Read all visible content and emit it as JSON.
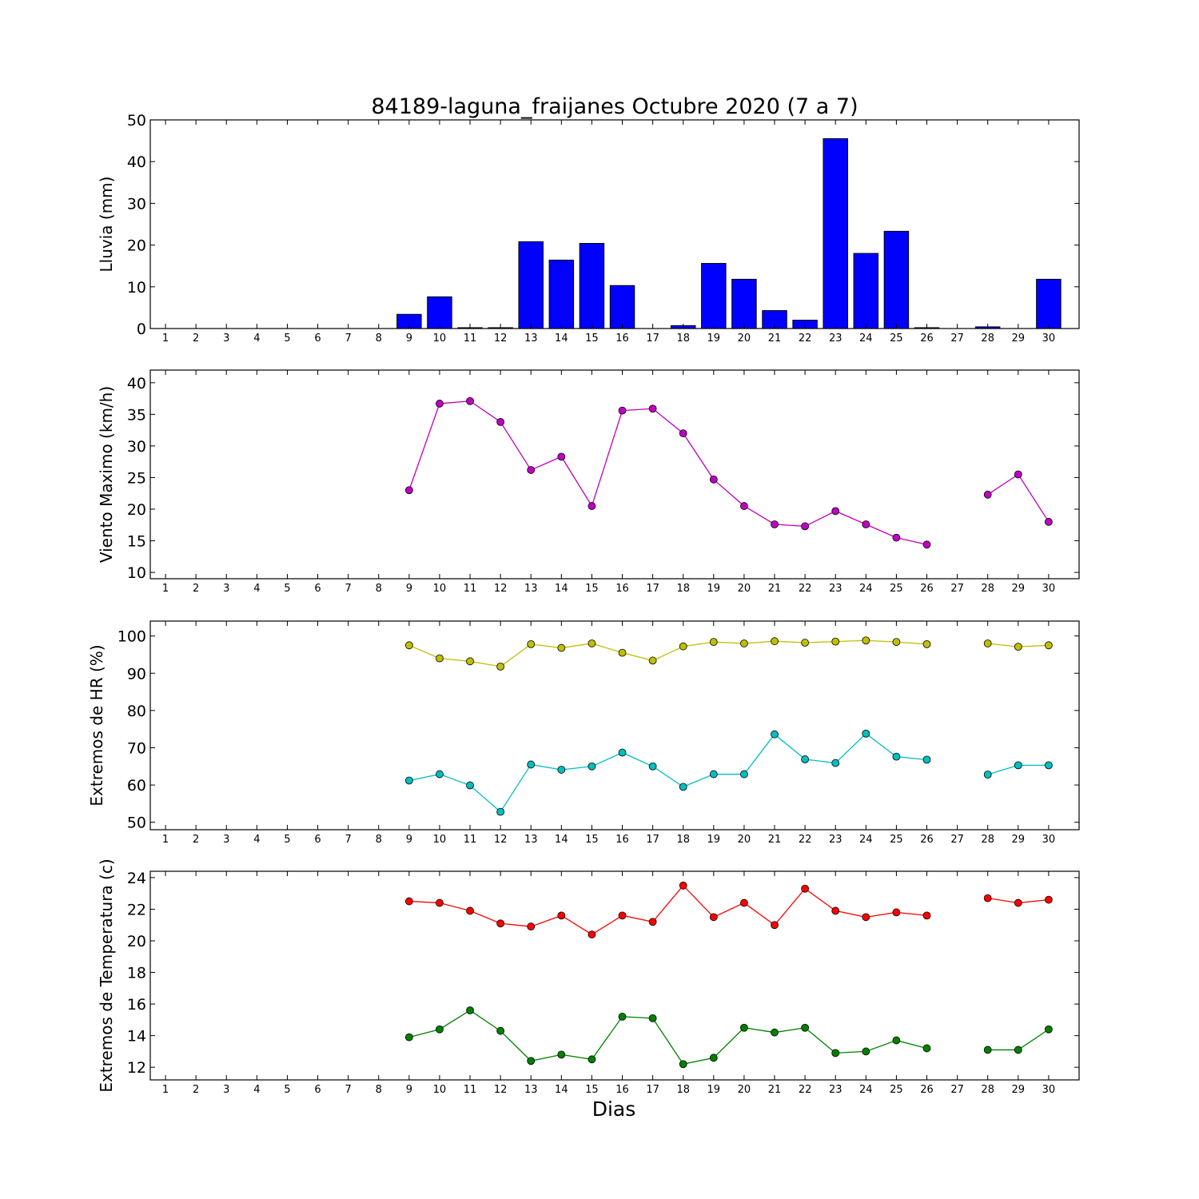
{
  "title": "84189-laguna_fraijanes Octubre 2020  (7 a 7)",
  "xlabel": "Dias",
  "x_tick_labels": [
    "1",
    "2",
    "3",
    "4",
    "5",
    "6",
    "7",
    "8",
    "9",
    "10",
    "11",
    "12",
    "13",
    "14",
    "15",
    "16",
    "17",
    "18",
    "19",
    "20",
    "21",
    "22",
    "23",
    "24",
    "25",
    "26",
    "27",
    "28",
    "29",
    "30"
  ],
  "chart_data": [
    {
      "type": "bar",
      "ylabel": "Lluvia (mm)",
      "ylim": [
        0,
        50
      ],
      "yticks": [
        0,
        10,
        20,
        30,
        40,
        50
      ],
      "categories": [
        "1",
        "2",
        "3",
        "4",
        "5",
        "6",
        "7",
        "8",
        "9",
        "10",
        "11",
        "12",
        "13",
        "14",
        "15",
        "16",
        "17",
        "18",
        "19",
        "20",
        "21",
        "22",
        "23",
        "24",
        "25",
        "26",
        "27",
        "28",
        "29",
        "30"
      ],
      "series": [
        {
          "color": "#0000ff",
          "values": [
            0,
            0,
            0,
            0,
            0,
            0,
            0,
            0,
            3.4,
            7.6,
            0.2,
            0.2,
            20.8,
            16.4,
            20.4,
            10.3,
            0,
            0.7,
            15.6,
            11.8,
            4.3,
            2.0,
            45.5,
            18.0,
            23.3,
            0.2,
            0,
            0.4,
            0,
            11.8
          ]
        }
      ]
    },
    {
      "type": "line",
      "ylabel": "Viento Maximo (km/h)",
      "ylim": [
        9,
        42
      ],
      "yticks": [
        10,
        15,
        20,
        25,
        30,
        35,
        40
      ],
      "categories": [
        "1",
        "2",
        "3",
        "4",
        "5",
        "6",
        "7",
        "8",
        "9",
        "10",
        "11",
        "12",
        "13",
        "14",
        "15",
        "16",
        "17",
        "18",
        "19",
        "20",
        "21",
        "22",
        "23",
        "24",
        "25",
        "26",
        "27",
        "28",
        "29",
        "30"
      ],
      "series": [
        {
          "color": "#bf00bf",
          "values": [
            null,
            null,
            null,
            null,
            null,
            null,
            null,
            null,
            23.0,
            36.7,
            37.1,
            33.8,
            26.2,
            28.3,
            20.5,
            35.6,
            35.9,
            32.0,
            24.7,
            20.5,
            17.6,
            17.3,
            19.7,
            17.6,
            15.5,
            14.4,
            null,
            22.3,
            25.5,
            18.0
          ]
        }
      ]
    },
    {
      "type": "line",
      "ylabel": "Extremos de HR (%)",
      "ylim": [
        48,
        104
      ],
      "yticks": [
        50,
        60,
        70,
        80,
        90,
        100
      ],
      "categories": [
        "1",
        "2",
        "3",
        "4",
        "5",
        "6",
        "7",
        "8",
        "9",
        "10",
        "11",
        "12",
        "13",
        "14",
        "15",
        "16",
        "17",
        "18",
        "19",
        "20",
        "21",
        "22",
        "23",
        "24",
        "25",
        "26",
        "27",
        "28",
        "29",
        "30"
      ],
      "series": [
        {
          "color": "#bfbf00",
          "values": [
            null,
            null,
            null,
            null,
            null,
            null,
            null,
            null,
            97.5,
            94.0,
            93.2,
            91.8,
            97.8,
            96.8,
            98.0,
            95.5,
            93.4,
            97.2,
            98.4,
            98.0,
            98.6,
            98.2,
            98.5,
            98.8,
            98.4,
            97.8,
            null,
            98.0,
            97.1,
            97.5
          ]
        },
        {
          "color": "#00bfbf",
          "values": [
            null,
            null,
            null,
            null,
            null,
            null,
            null,
            null,
            61.2,
            62.9,
            59.9,
            52.8,
            65.5,
            64.1,
            65.0,
            68.7,
            65.0,
            59.5,
            62.9,
            62.9,
            73.6,
            66.9,
            65.9,
            73.8,
            67.6,
            66.8,
            null,
            62.8,
            65.3,
            65.3
          ]
        }
      ]
    },
    {
      "type": "line",
      "ylabel": "Extremos de Temperatura (c)",
      "ylim": [
        11.2,
        24.4
      ],
      "yticks": [
        12,
        14,
        16,
        18,
        20,
        22,
        24
      ],
      "categories": [
        "1",
        "2",
        "3",
        "4",
        "5",
        "6",
        "7",
        "8",
        "9",
        "10",
        "11",
        "12",
        "13",
        "14",
        "15",
        "16",
        "17",
        "18",
        "19",
        "20",
        "21",
        "22",
        "23",
        "24",
        "25",
        "26",
        "27",
        "28",
        "29",
        "30"
      ],
      "series": [
        {
          "color": "#ff0000",
          "values": [
            null,
            null,
            null,
            null,
            null,
            null,
            null,
            null,
            22.5,
            22.4,
            21.9,
            21.1,
            20.9,
            21.6,
            20.4,
            21.6,
            21.2,
            23.5,
            21.5,
            22.4,
            21.0,
            23.3,
            21.9,
            21.5,
            21.8,
            21.6,
            null,
            22.7,
            22.4,
            22.6
          ]
        },
        {
          "color": "#008000",
          "values": [
            null,
            null,
            null,
            null,
            null,
            null,
            null,
            null,
            13.9,
            14.4,
            15.6,
            14.3,
            12.4,
            12.8,
            12.5,
            15.2,
            15.1,
            12.2,
            12.6,
            14.5,
            14.2,
            14.5,
            12.9,
            13.0,
            13.7,
            13.2,
            null,
            13.1,
            13.1,
            14.4
          ]
        }
      ]
    }
  ]
}
